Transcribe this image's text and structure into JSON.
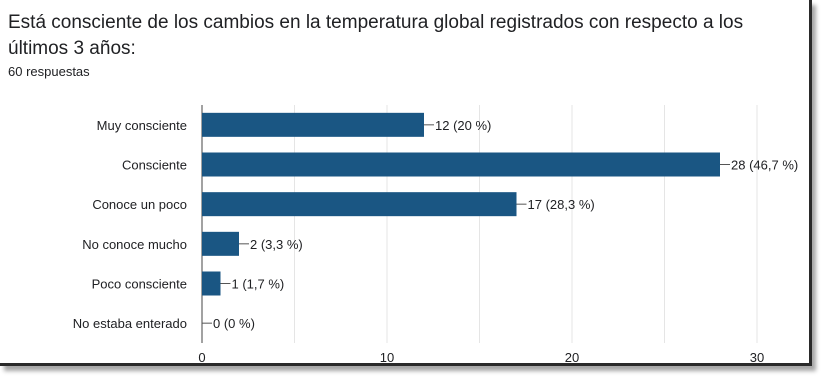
{
  "question": {
    "title": "Está consciente de los cambios en la temperatura global registrados con respecto a los últimos 3 años:",
    "responses": "60 respuestas"
  },
  "colors": {
    "bar": "#1a5683",
    "grid": "#e5e5e5",
    "axis": "#444444",
    "text": "#202124"
  },
  "chart_data": {
    "type": "bar",
    "orientation": "horizontal",
    "title": "",
    "xlabel": "",
    "ylabel": "",
    "categories": [
      "Muy consciente",
      "Consciente",
      "Conoce un poco",
      "No conoce mucho",
      "Poco consciente",
      "No estaba enterado"
    ],
    "values": [
      12,
      28,
      17,
      2,
      1,
      0
    ],
    "labels": [
      "12 (20 %)",
      "28 (46,7 %)",
      "17 (28,3 %)",
      "2 (3,3 %)",
      "1 (1,7 %)",
      "0 (0 %)"
    ],
    "xlim": [
      0,
      30
    ],
    "xticks": [
      0,
      10,
      20,
      30
    ],
    "grid": true
  }
}
